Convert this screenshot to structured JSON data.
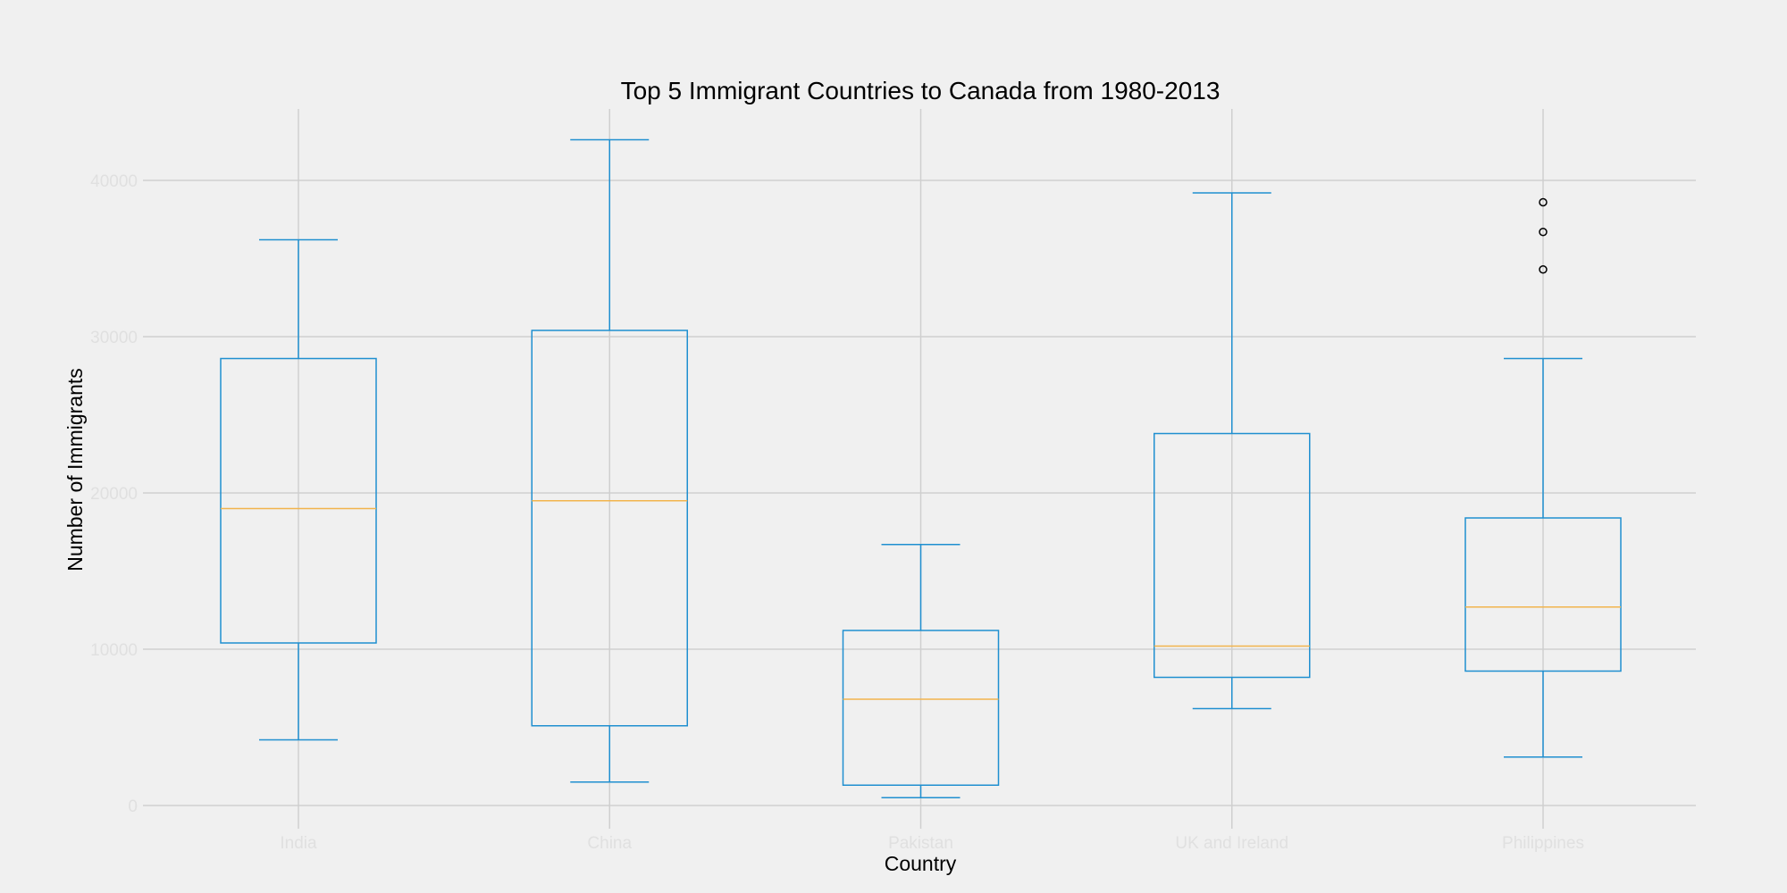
{
  "chart_data": {
    "type": "box",
    "title": "Top 5 Immigrant Countries to Canada from 1980-2013",
    "xlabel": "Country",
    "ylabel": "Number of Immigrants",
    "ylim": [
      -1500,
      44500
    ],
    "yticks": [
      0,
      10000,
      20000,
      30000,
      40000
    ],
    "grid": true,
    "legend": "none",
    "colors": {
      "box": "#1f8fd0",
      "median": "#f2b44d",
      "flier": "#000000",
      "grid": "#cfcfcf",
      "tick_label": "#e0e0e0",
      "background": "#f0f0f0"
    },
    "categories": [
      "India",
      "China",
      "Pakistan",
      "UK and Ireland",
      "Philippines"
    ],
    "boxes": [
      {
        "label": "India",
        "whisker_low": 4200,
        "q1": 10400,
        "median": 19000,
        "q3": 28600,
        "whisker_high": 36200,
        "outliers": []
      },
      {
        "label": "China",
        "whisker_low": 1500,
        "q1": 5100,
        "median": 19500,
        "q3": 30400,
        "whisker_high": 42600,
        "outliers": []
      },
      {
        "label": "Pakistan",
        "whisker_low": 500,
        "q1": 1300,
        "median": 6800,
        "q3": 11200,
        "whisker_high": 16700,
        "outliers": []
      },
      {
        "label": "UK and Ireland",
        "whisker_low": 6200,
        "q1": 8200,
        "median": 10200,
        "q3": 23800,
        "whisker_high": 39200,
        "outliers": []
      },
      {
        "label": "Philippines",
        "whisker_low": 3100,
        "q1": 8600,
        "median": 12700,
        "q3": 18400,
        "whisker_high": 28600,
        "outliers": [
          34300,
          36700,
          38600
        ]
      }
    ]
  }
}
